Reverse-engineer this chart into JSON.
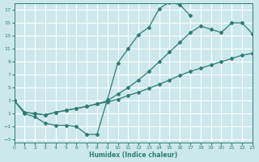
{
  "xlabel": "Humidex (Indice chaleur)",
  "bg_color": "#cce8ec",
  "grid_color": "#ffffff",
  "line_color": "#2e7d74",
  "xlim": [
    0,
    23
  ],
  "ylim": [
    -3.5,
    18
  ],
  "xticks": [
    0,
    1,
    2,
    3,
    4,
    5,
    6,
    7,
    8,
    9,
    10,
    11,
    12,
    13,
    14,
    15,
    16,
    17,
    18,
    19,
    20,
    21,
    22,
    23
  ],
  "yticks": [
    -3,
    -1,
    1,
    3,
    5,
    7,
    9,
    11,
    13,
    15,
    17
  ],
  "curve_main_x": [
    0,
    1,
    2,
    3,
    4,
    5,
    6,
    7,
    8,
    9,
    10,
    11,
    12,
    13,
    14,
    15,
    16,
    17
  ],
  "curve_main_y": [
    3,
    1,
    0.5,
    -0.5,
    -0.8,
    -0.8,
    -1.0,
    -2.2,
    -2.2,
    3.2,
    8.8,
    11.0,
    13.2,
    14.3,
    17.2,
    18.2,
    17.8,
    16.1
  ],
  "curve_low_x": [
    0,
    1,
    2,
    3,
    4,
    5,
    6,
    7,
    8,
    9,
    10,
    11,
    12,
    13,
    14,
    15,
    16,
    17,
    18,
    19,
    20,
    21,
    22,
    23
  ],
  "curve_low_y": [
    3,
    1.2,
    1.0,
    0.8,
    1.2,
    1.5,
    1.8,
    2.1,
    2.5,
    2.8,
    3.2,
    3.8,
    4.3,
    4.9,
    5.5,
    6.2,
    6.9,
    7.5,
    8.0,
    8.5,
    9.0,
    9.5,
    10.0,
    10.3
  ],
  "curve_high_x": [
    0,
    1,
    2,
    3,
    4,
    5,
    6,
    7,
    8,
    9,
    10,
    11,
    12,
    13,
    14,
    15,
    16,
    17,
    18,
    19,
    20,
    21,
    22,
    23
  ],
  "curve_high_y": [
    3,
    1.2,
    1.0,
    0.8,
    1.2,
    1.5,
    1.8,
    2.1,
    2.5,
    3.0,
    4.0,
    5.0,
    6.2,
    7.5,
    9.0,
    10.5,
    12.0,
    13.5,
    14.5,
    14.0,
    13.5,
    15.0,
    15.0,
    13.3
  ]
}
